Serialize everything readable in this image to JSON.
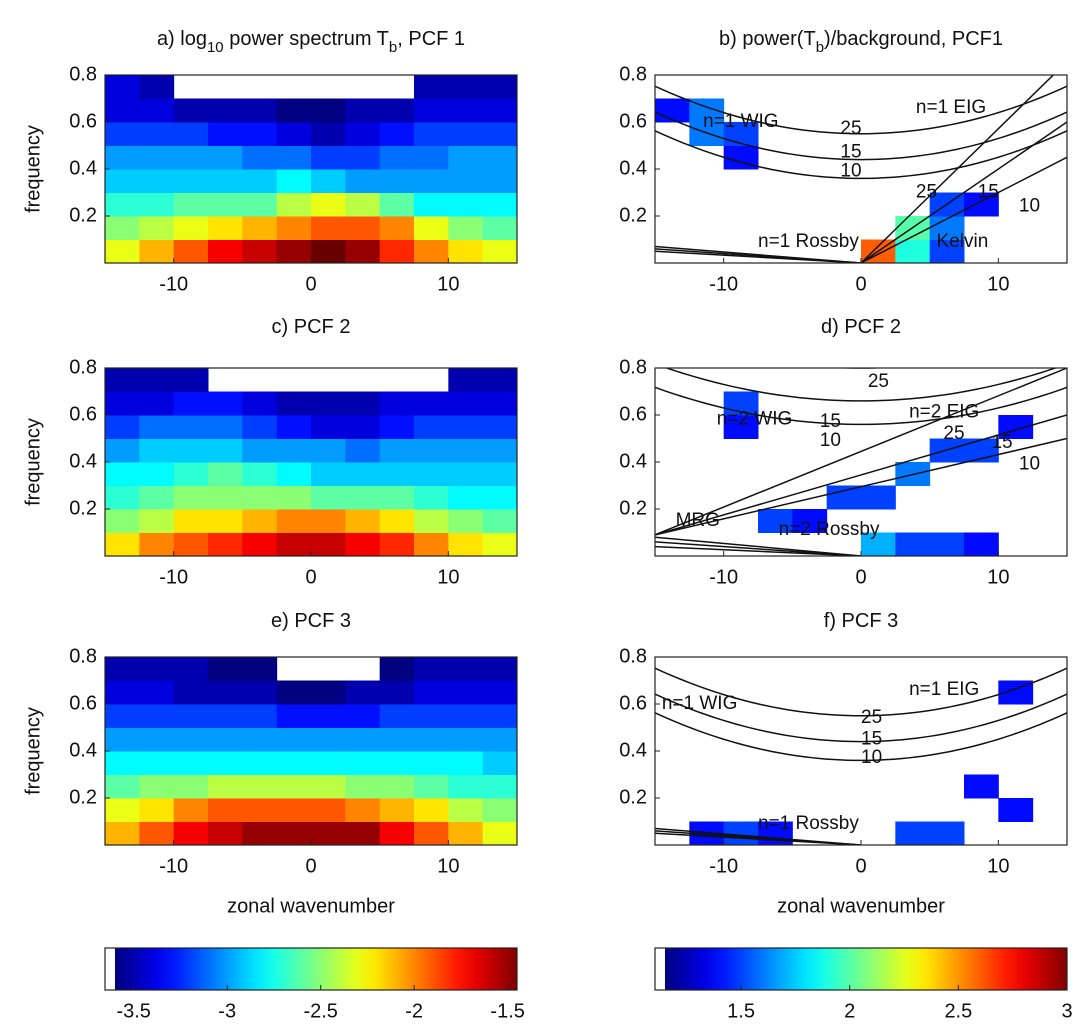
{
  "chart_data": [
    {
      "type": "heatmap",
      "title": [
        "a) log",
        "10",
        " power spectrum T",
        "b",
        ", PCF 1"
      ],
      "ylabel": "frequency",
      "xlim": [
        -15,
        15
      ],
      "ylim": [
        0,
        0.8
      ],
      "xticks": [
        -10,
        0,
        10
      ],
      "yticks": [
        0.2,
        0.4,
        0.6,
        0.8
      ],
      "z": [
        [
          -2.3,
          -2.1,
          -1.9,
          -1.7,
          -1.6,
          -1.5,
          -1.4,
          -1.5,
          -1.8,
          -2.0,
          -2.2,
          -2.3
        ],
        [
          -2.5,
          -2.4,
          -2.3,
          -2.2,
          -2.1,
          -2.0,
          -1.9,
          -1.9,
          -2.0,
          -2.3,
          -2.5,
          -2.6
        ],
        [
          -2.7,
          -2.7,
          -2.6,
          -2.6,
          -2.6,
          -2.4,
          -2.3,
          -2.4,
          -2.6,
          -2.8,
          -2.8,
          -2.8
        ],
        [
          -2.9,
          -2.9,
          -2.9,
          -2.9,
          -2.9,
          -2.8,
          -2.9,
          -3.0,
          -3.0,
          -3.0,
          -3.0,
          -3.0
        ],
        [
          -3.0,
          -3.0,
          -3.0,
          -3.0,
          -3.1,
          -3.1,
          -3.2,
          -3.2,
          -3.1,
          -3.1,
          -3.0,
          -3.0
        ],
        [
          -3.2,
          -3.2,
          -3.2,
          -3.3,
          -3.3,
          -3.4,
          -3.5,
          -3.4,
          -3.3,
          -3.2,
          -3.2,
          -3.2
        ],
        [
          -3.4,
          -3.4,
          -3.5,
          -3.5,
          -3.5,
          -3.6,
          -3.6,
          -3.5,
          -3.5,
          -3.4,
          -3.4,
          -3.4
        ],
        [
          -3.4,
          -3.5,
          null,
          null,
          null,
          null,
          null,
          null,
          null,
          -3.5,
          -3.5,
          -3.5
        ]
      ]
    },
    {
      "type": "heatmap",
      "title": [
        "b) power(T",
        "b",
        ")/background, PCF1"
      ],
      "xlim": [
        -15,
        15
      ],
      "ylim": [
        0,
        0.8
      ],
      "xticks": [
        -10,
        0,
        10
      ],
      "yticks": [
        0.2,
        0.4,
        0.6,
        0.8
      ],
      "annotations": [
        "n=1 WIG",
        "n=1 EIG",
        "25",
        "15",
        "10",
        "25",
        "15",
        "10",
        "n=1 Rossby",
        "Kelvin"
      ],
      "z": [
        [
          null,
          null,
          null,
          null,
          null,
          null,
          2.6,
          1.9,
          1.5,
          null,
          null,
          null
        ],
        [
          null,
          null,
          null,
          null,
          null,
          null,
          null,
          2.0,
          1.6,
          null,
          null,
          null
        ],
        [
          null,
          null,
          null,
          null,
          null,
          null,
          null,
          null,
          1.5,
          1.4,
          null,
          null
        ],
        [
          null,
          null,
          null,
          null,
          null,
          null,
          null,
          null,
          null,
          null,
          null,
          null
        ],
        [
          null,
          null,
          1.4,
          null,
          null,
          null,
          null,
          null,
          null,
          null,
          null,
          null
        ],
        [
          null,
          1.6,
          1.5,
          null,
          null,
          null,
          null,
          null,
          null,
          null,
          null,
          null
        ],
        [
          1.4,
          1.6,
          null,
          null,
          null,
          null,
          null,
          null,
          null,
          null,
          null,
          null
        ],
        [
          null,
          null,
          null,
          null,
          null,
          null,
          null,
          null,
          null,
          null,
          null,
          null
        ]
      ]
    },
    {
      "type": "heatmap",
      "title": [
        "c) PCF 2"
      ],
      "ylabel": "frequency",
      "xlim": [
        -15,
        15
      ],
      "ylim": [
        0,
        0.8
      ],
      "xticks": [
        -10,
        0,
        10
      ],
      "yticks": [
        0.2,
        0.4,
        0.6,
        0.8
      ],
      "z": [
        [
          -2.2,
          -2.0,
          -1.9,
          -1.8,
          -1.7,
          -1.6,
          -1.6,
          -1.7,
          -1.8,
          -2.0,
          -2.2,
          -2.3
        ],
        [
          -2.5,
          -2.4,
          -2.2,
          -2.2,
          -2.1,
          -2.0,
          -2.0,
          -2.1,
          -2.2,
          -2.4,
          -2.5,
          -2.6
        ],
        [
          -2.7,
          -2.6,
          -2.5,
          -2.5,
          -2.5,
          -2.5,
          -2.6,
          -2.6,
          -2.6,
          -2.7,
          -2.8,
          -2.8
        ],
        [
          -2.8,
          -2.8,
          -2.7,
          -2.6,
          -2.7,
          -2.8,
          -2.9,
          -2.9,
          -2.9,
          -2.9,
          -2.9,
          -2.9
        ],
        [
          -3.0,
          -2.9,
          -2.9,
          -2.9,
          -3.0,
          -3.0,
          -3.0,
          -3.1,
          -3.0,
          -3.0,
          -3.0,
          -3.0
        ],
        [
          -3.2,
          -3.1,
          -3.1,
          -3.1,
          -3.2,
          -3.3,
          -3.4,
          -3.4,
          -3.3,
          -3.2,
          -3.2,
          -3.2
        ],
        [
          -3.4,
          -3.4,
          -3.3,
          -3.3,
          -3.4,
          -3.5,
          -3.5,
          -3.5,
          -3.4,
          -3.4,
          -3.4,
          -3.4
        ],
        [
          -3.5,
          -3.5,
          -3.5,
          null,
          null,
          null,
          null,
          null,
          null,
          null,
          -3.5,
          -3.5
        ]
      ]
    },
    {
      "type": "heatmap",
      "title": [
        "d) PCF 2"
      ],
      "xlim": [
        -15,
        15
      ],
      "ylim": [
        0,
        0.8
      ],
      "xticks": [
        -10,
        0,
        10
      ],
      "yticks": [
        0.2,
        0.4,
        0.6,
        0.8
      ],
      "annotations": [
        "25",
        "n=2 EIG",
        "n=2 WIG",
        "25",
        "15",
        "15",
        "10",
        "10",
        "MRG",
        "n=2 Rossby"
      ],
      "z": [
        [
          null,
          null,
          null,
          null,
          null,
          null,
          1.7,
          1.5,
          1.5,
          1.4,
          null,
          null
        ],
        [
          null,
          null,
          null,
          1.5,
          1.4,
          null,
          null,
          null,
          null,
          null,
          null,
          null
        ],
        [
          null,
          null,
          null,
          null,
          null,
          1.5,
          1.5,
          null,
          null,
          null,
          null,
          null
        ],
        [
          null,
          null,
          null,
          null,
          null,
          null,
          null,
          1.6,
          null,
          null,
          null,
          null
        ],
        [
          null,
          null,
          null,
          null,
          null,
          null,
          null,
          null,
          1.5,
          1.5,
          null,
          null
        ],
        [
          null,
          null,
          1.4,
          null,
          null,
          null,
          null,
          null,
          null,
          null,
          1.4,
          null
        ],
        [
          null,
          null,
          1.5,
          null,
          null,
          null,
          null,
          null,
          null,
          null,
          null,
          null
        ],
        [
          null,
          null,
          null,
          null,
          null,
          null,
          null,
          null,
          null,
          null,
          null,
          null
        ]
      ]
    },
    {
      "type": "heatmap",
      "title": [
        "e) PCF 3"
      ],
      "ylabel": "frequency",
      "xlabel": "zonal wavenumber",
      "xlim": [
        -15,
        15
      ],
      "ylim": [
        0,
        0.8
      ],
      "xticks": [
        -10,
        0,
        10
      ],
      "yticks": [
        0.2,
        0.4,
        0.6,
        0.8
      ],
      "z": [
        [
          -2.1,
          -1.9,
          -1.7,
          -1.6,
          -1.5,
          -1.5,
          -1.5,
          -1.5,
          -1.7,
          -1.9,
          -2.1,
          -2.3
        ],
        [
          -2.3,
          -2.2,
          -2.0,
          -1.9,
          -1.9,
          -1.9,
          -1.9,
          -2.0,
          -2.1,
          -2.2,
          -2.4,
          -2.5
        ],
        [
          -2.6,
          -2.5,
          -2.5,
          -2.4,
          -2.4,
          -2.4,
          -2.4,
          -2.5,
          -2.5,
          -2.6,
          -2.7,
          -2.7
        ],
        [
          -2.8,
          -2.8,
          -2.8,
          -2.8,
          -2.8,
          -2.8,
          -2.8,
          -2.8,
          -2.8,
          -2.8,
          -2.8,
          -2.9
        ],
        [
          -3.0,
          -3.0,
          -3.0,
          -3.0,
          -3.0,
          -3.0,
          -3.0,
          -3.0,
          -3.0,
          -3.0,
          -3.0,
          -3.0
        ],
        [
          -3.2,
          -3.2,
          -3.2,
          -3.2,
          -3.2,
          -3.3,
          -3.3,
          -3.3,
          -3.2,
          -3.2,
          -3.2,
          -3.2
        ],
        [
          -3.4,
          -3.4,
          -3.5,
          -3.5,
          -3.5,
          -3.6,
          -3.6,
          -3.5,
          -3.5,
          -3.4,
          -3.4,
          -3.4
        ],
        [
          -3.5,
          -3.5,
          -3.5,
          -3.6,
          -3.6,
          null,
          null,
          null,
          -3.6,
          -3.5,
          -3.5,
          -3.5
        ]
      ]
    },
    {
      "type": "heatmap",
      "title": [
        "f)  PCF 3"
      ],
      "xlabel": "zonal wavenumber",
      "xlim": [
        -15,
        15
      ],
      "ylim": [
        0,
        0.8
      ],
      "xticks": [
        -10,
        0,
        10
      ],
      "yticks": [
        0.2,
        0.4,
        0.6,
        0.8
      ],
      "annotations": [
        "n=1 WIG",
        "n=1 EIG",
        "25",
        "15",
        "10",
        "n=1 Rossby"
      ],
      "z": [
        [
          null,
          1.4,
          1.5,
          1.4,
          null,
          null,
          null,
          1.5,
          1.5,
          null,
          null,
          null
        ],
        [
          null,
          null,
          null,
          null,
          null,
          null,
          null,
          null,
          null,
          null,
          1.4,
          null
        ],
        [
          null,
          null,
          null,
          null,
          null,
          null,
          null,
          null,
          null,
          1.4,
          null,
          null
        ],
        [
          null,
          null,
          null,
          null,
          null,
          null,
          null,
          null,
          null,
          null,
          null,
          null
        ],
        [
          null,
          null,
          null,
          null,
          null,
          null,
          null,
          null,
          null,
          null,
          null,
          null
        ],
        [
          null,
          null,
          null,
          null,
          null,
          null,
          null,
          null,
          null,
          null,
          null,
          null
        ],
        [
          null,
          null,
          null,
          null,
          null,
          null,
          null,
          null,
          null,
          null,
          1.4,
          null
        ],
        [
          null,
          null,
          null,
          null,
          null,
          null,
          null,
          null,
          null,
          null,
          null,
          null
        ]
      ]
    },
    {
      "type": "colorbar",
      "clim": [
        -3.6,
        -1.45
      ],
      "ticks": [
        -3.5,
        -3,
        -2.5,
        -2,
        -1.5
      ]
    },
    {
      "type": "colorbar",
      "clim": [
        1.15,
        3
      ],
      "ticks": [
        1.5,
        2,
        2.5,
        3
      ]
    }
  ]
}
